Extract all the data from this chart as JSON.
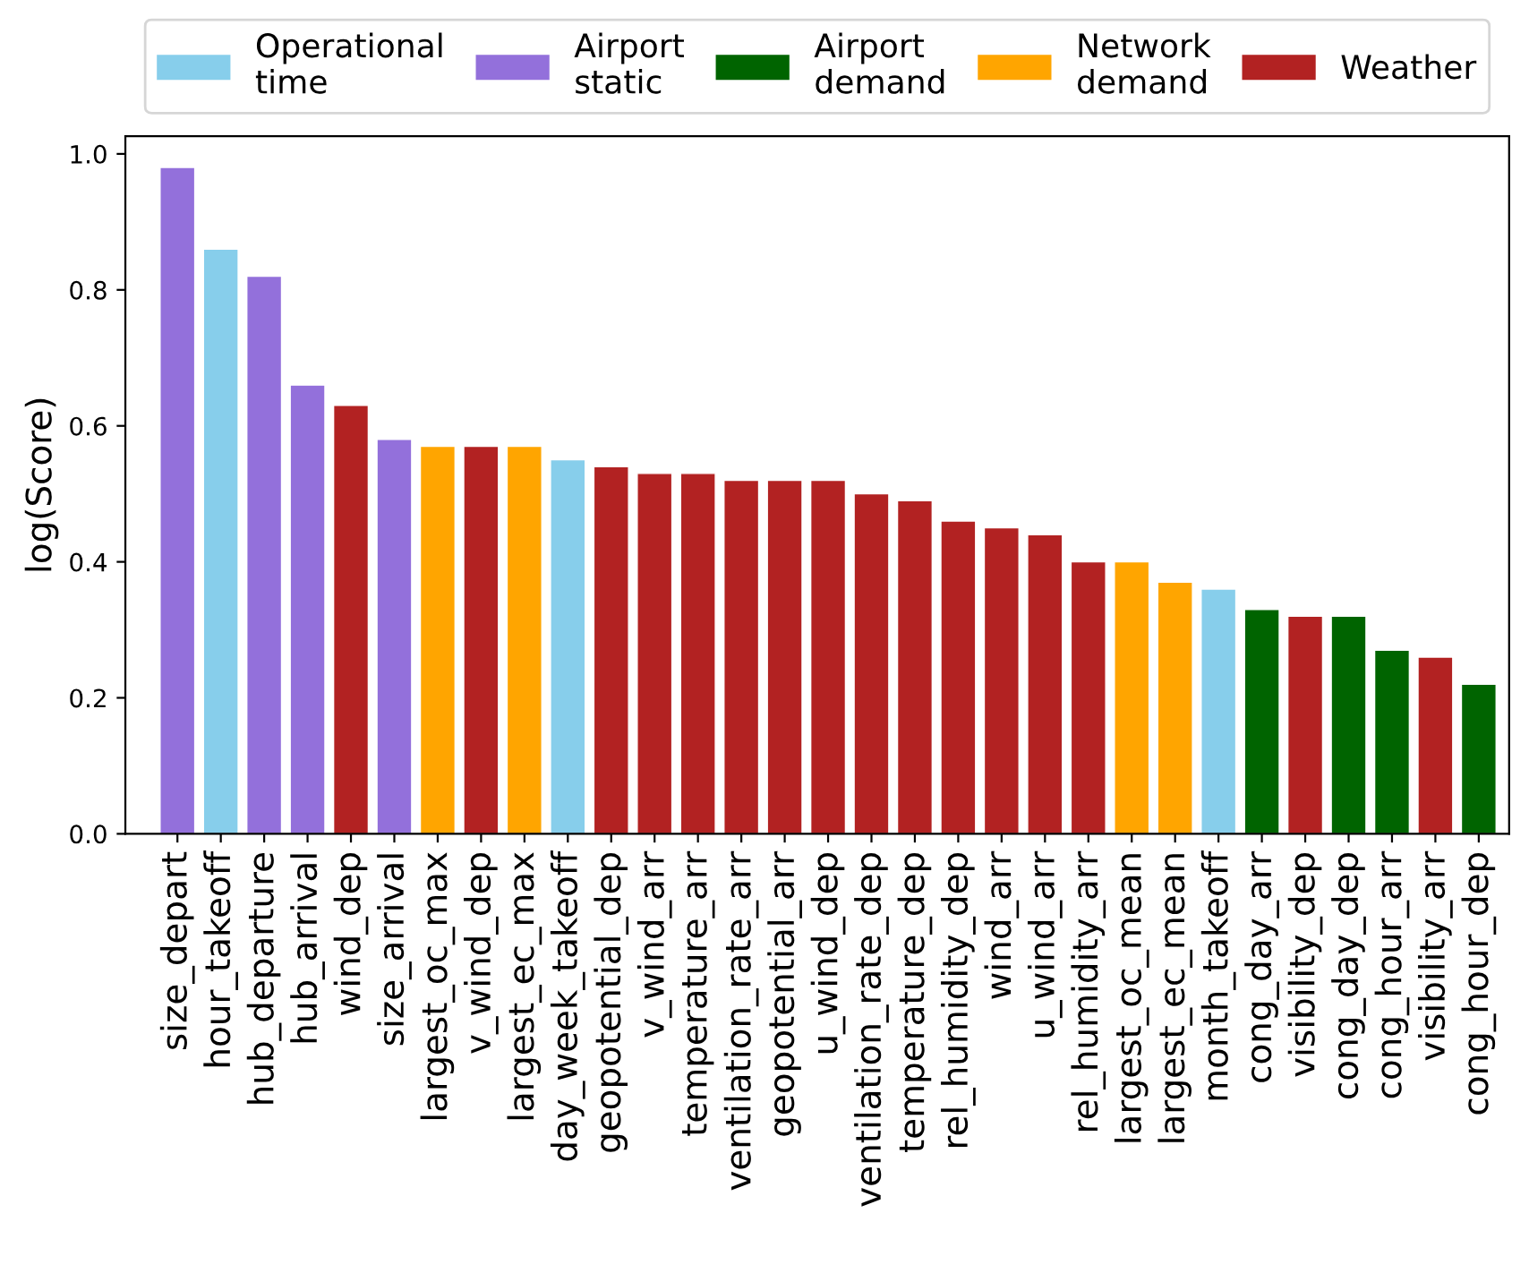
{
  "chart_data": {
    "type": "bar",
    "stacked": true,
    "ylabel": "log(Score)",
    "categories": [
      "size_depart",
      "hour_takeoff",
      "hub_departure",
      "hub_arrival",
      "wind_dep",
      "size_arrival",
      "largest_oc_max",
      "v_wind_dep",
      "largest_ec_max",
      "day_week_takeoff",
      "geopotential_dep",
      "v_wind_arr",
      "temperature_arr",
      "ventilation_rate_arr",
      "geopotential_arr",
      "u_wind_dep",
      "ventilation_rate_dep",
      "temperature_dep",
      "rel_humidity_dep",
      "wind_arr",
      "u_wind_arr",
      "rel_humidity_arr",
      "largest_oc_mean",
      "largest_ec_mean",
      "month_takeoff",
      "cong_day_arr",
      "visibility_dep",
      "cong_day_dep",
      "cong_hour_arr",
      "visibility_arr",
      "cong_hour_dep"
    ],
    "series": [
      {
        "name": "Operational time",
        "color": "#87ceeb",
        "values": [
          null,
          0.86,
          null,
          null,
          null,
          null,
          null,
          null,
          null,
          0.55,
          null,
          null,
          null,
          null,
          null,
          null,
          null,
          null,
          null,
          null,
          null,
          null,
          null,
          null,
          0.36,
          null,
          null,
          null,
          null,
          null,
          null
        ]
      },
      {
        "name": "Airport static",
        "color": "#9370db",
        "values": [
          0.98,
          null,
          0.82,
          0.66,
          null,
          0.58,
          null,
          null,
          null,
          null,
          null,
          null,
          null,
          null,
          null,
          null,
          null,
          null,
          null,
          null,
          null,
          null,
          null,
          null,
          null,
          null,
          null,
          null,
          null,
          null,
          null
        ]
      },
      {
        "name": "Airport demand",
        "color": "#006400",
        "values": [
          null,
          null,
          null,
          null,
          null,
          null,
          null,
          null,
          null,
          null,
          null,
          null,
          null,
          null,
          null,
          null,
          null,
          null,
          null,
          null,
          null,
          null,
          null,
          null,
          null,
          0.33,
          null,
          0.32,
          0.27,
          null,
          0.22
        ]
      },
      {
        "name": "Network demand",
        "color": "#ffa500",
        "values": [
          null,
          null,
          null,
          null,
          null,
          null,
          0.57,
          null,
          0.57,
          null,
          null,
          null,
          null,
          null,
          null,
          null,
          null,
          null,
          null,
          null,
          null,
          null,
          0.4,
          0.37,
          null,
          null,
          null,
          null,
          null,
          null,
          null
        ]
      },
      {
        "name": "Weather",
        "color": "#b22222",
        "values": [
          null,
          null,
          null,
          null,
          0.63,
          null,
          null,
          0.57,
          null,
          null,
          0.54,
          0.53,
          0.53,
          0.52,
          0.52,
          0.52,
          0.5,
          0.49,
          0.46,
          0.45,
          0.44,
          0.4,
          null,
          null,
          null,
          null,
          0.32,
          null,
          null,
          0.26,
          null
        ]
      }
    ],
    "ylim": [
      0,
      1.026
    ],
    "yticks": [
      {
        "value": 0,
        "label": "0.0"
      },
      {
        "value": 0.2,
        "label": "0.2"
      },
      {
        "value": 0.4,
        "label": "0.4"
      },
      {
        "value": 0.6,
        "label": "0.6"
      },
      {
        "value": 0.8,
        "label": "0.8"
      },
      {
        "value": 1,
        "label": "1.0"
      }
    ],
    "legend": "top",
    "grid": false
  }
}
